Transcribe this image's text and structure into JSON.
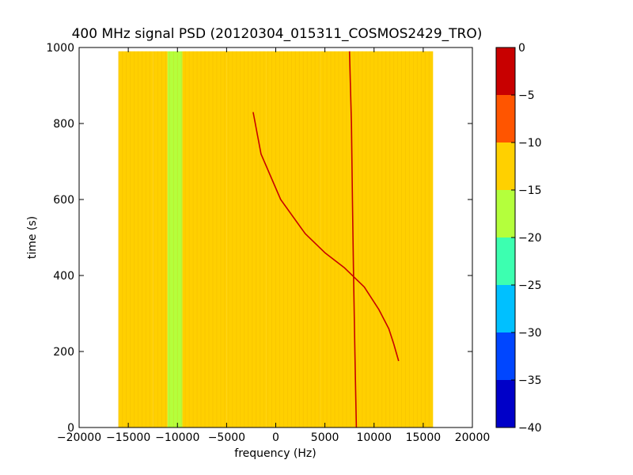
{
  "chart_data": {
    "type": "heatmap",
    "title": "400 MHz signal PSD (20120304_015311_COSMOS2429_TRO)",
    "xlabel": "frequency (Hz)",
    "ylabel": "time (s)",
    "xlim": [
      -20000,
      20000
    ],
    "ylim": [
      0,
      1000
    ],
    "xticks": [
      -20000,
      -15000,
      -10000,
      -5000,
      0,
      5000,
      10000,
      15000,
      20000
    ],
    "xtick_labels": [
      "−20000",
      "−15000",
      "−10000",
      "−5000",
      "0",
      "5000",
      "10000",
      "15000",
      "20000"
    ],
    "yticks": [
      0,
      200,
      400,
      600,
      800,
      1000
    ],
    "ytick_labels": [
      "0",
      "200",
      "400",
      "600",
      "800",
      "1000"
    ],
    "data_extent": {
      "freq": [
        -16000,
        16000
      ],
      "time": [
        0,
        990
      ]
    },
    "background_bands": [
      {
        "from": -16000,
        "to": -12500,
        "level": -11.5
      },
      {
        "from": -12500,
        "to": -11000,
        "level": -13.5
      },
      {
        "from": -11000,
        "to": -9500,
        "level": -15.5
      },
      {
        "from": -9500,
        "to": -5000,
        "level": -14.5
      },
      {
        "from": -5000,
        "to": -1000,
        "level": -13
      },
      {
        "from": -1000,
        "to": 4500,
        "level": -12.5
      },
      {
        "from": 4500,
        "to": 16000,
        "level": -11
      }
    ],
    "features": [
      {
        "name": "doppler-track",
        "level": -2,
        "points": [
          [
            -2300,
            830
          ],
          [
            -1500,
            720
          ],
          [
            500,
            600
          ],
          [
            3000,
            510
          ],
          [
            5000,
            460
          ],
          [
            7000,
            420
          ],
          [
            9000,
            370
          ],
          [
            10500,
            310
          ],
          [
            11500,
            260
          ],
          [
            12000,
            220
          ],
          [
            12500,
            175
          ]
        ]
      },
      {
        "name": "carrier-line",
        "level": -3,
        "points": [
          [
            7500,
            990
          ],
          [
            7700,
            800
          ],
          [
            7800,
            600
          ],
          [
            7900,
            420
          ],
          [
            8050,
            200
          ],
          [
            8200,
            0
          ]
        ]
      }
    ],
    "colorbar": {
      "levels": [
        -40,
        -35,
        -30,
        -25,
        -20,
        -15,
        -10,
        -5,
        0
      ],
      "tick_labels": [
        "−40",
        "−35",
        "−30",
        "−25",
        "−20",
        "−15",
        "−10",
        "−5",
        "0"
      ],
      "colors": [
        "#0000c8",
        "#0046ff",
        "#00c0ff",
        "#3cffb0",
        "#b4ff3c",
        "#ffd000",
        "#ff5500",
        "#c80000"
      ]
    }
  }
}
